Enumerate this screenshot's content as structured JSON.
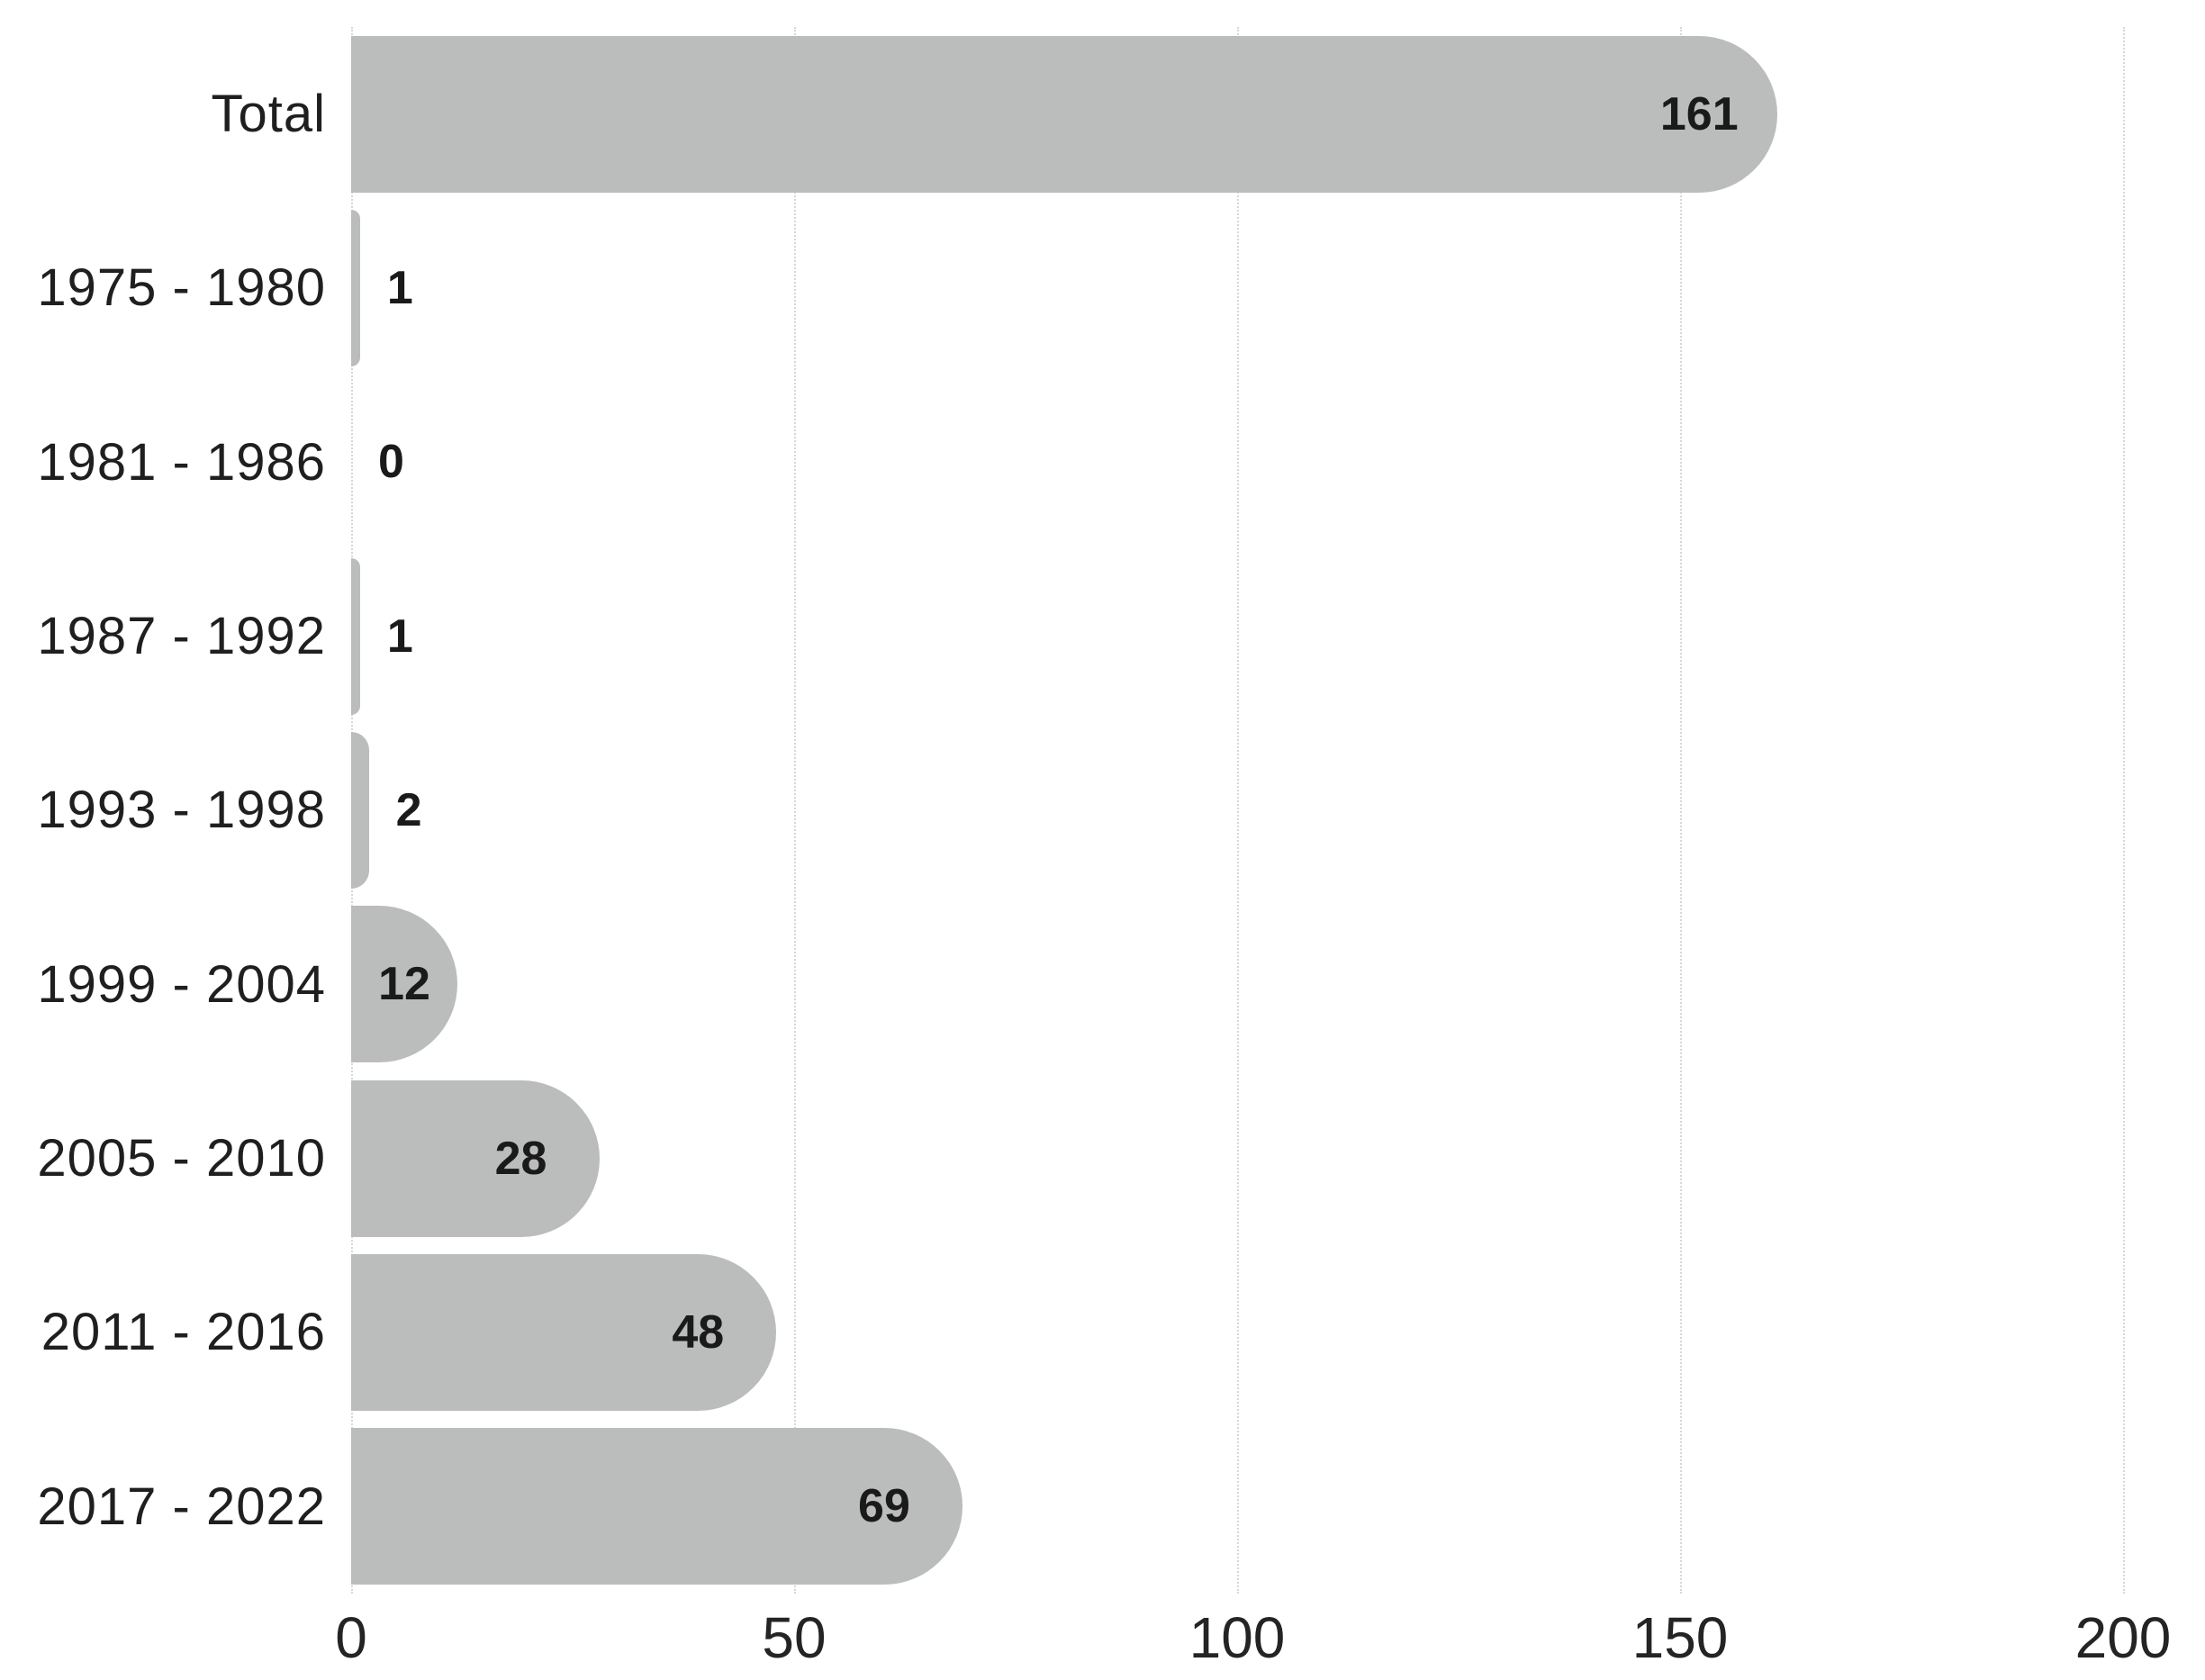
{
  "chart_data": {
    "type": "bar",
    "orientation": "horizontal",
    "title": "",
    "xlabel": "",
    "ylabel": "",
    "categories": [
      "Total",
      "1975 - 1980",
      "1981 - 1986",
      "1987 - 1992",
      "1993 - 1998",
      "1999 - 2004",
      "2005 - 2010",
      "2011 - 2016",
      "2017 - 2022"
    ],
    "values": [
      161,
      1,
      0,
      1,
      2,
      12,
      28,
      48,
      69
    ],
    "xlim": [
      0,
      200
    ],
    "x_ticks": [
      0,
      50,
      100,
      150,
      200
    ],
    "grid": true,
    "gridline_style": "dotted",
    "legend": false,
    "colors": {
      "bar": "#bbbcbc",
      "value_label": "#1a1a1a",
      "category_label": "#1f1f1f",
      "tick_label": "#242424",
      "gridline": "#d7d7d7",
      "background": "#ffffff"
    }
  }
}
